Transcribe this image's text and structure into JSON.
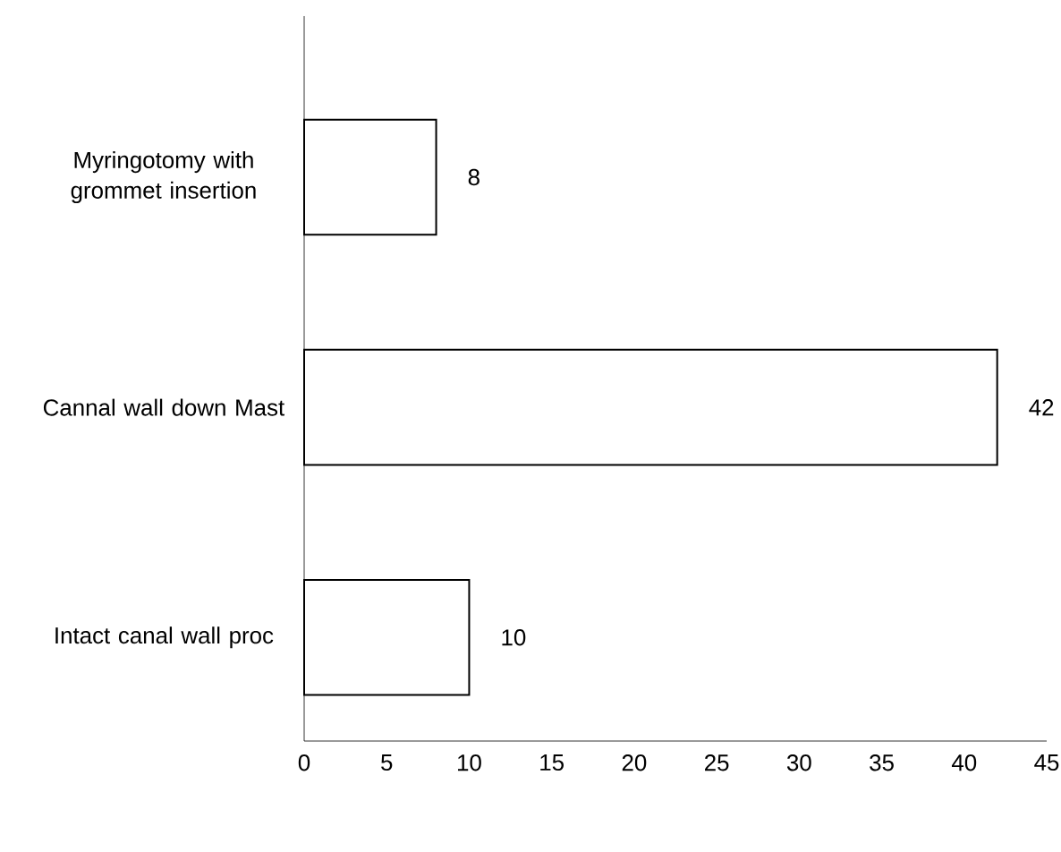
{
  "chart_data": {
    "type": "bar",
    "orientation": "horizontal",
    "categories": [
      "Myringotomy with grommet insertion",
      "Cannal wall down Mast",
      "Intact canal wall proc"
    ],
    "values": [
      8,
      42,
      10
    ],
    "color": "#000000",
    "xlim": [
      0,
      45
    ],
    "xticks": [
      0,
      5,
      10,
      15,
      20,
      25,
      30,
      35,
      40,
      45
    ],
    "data_labels": true
  }
}
